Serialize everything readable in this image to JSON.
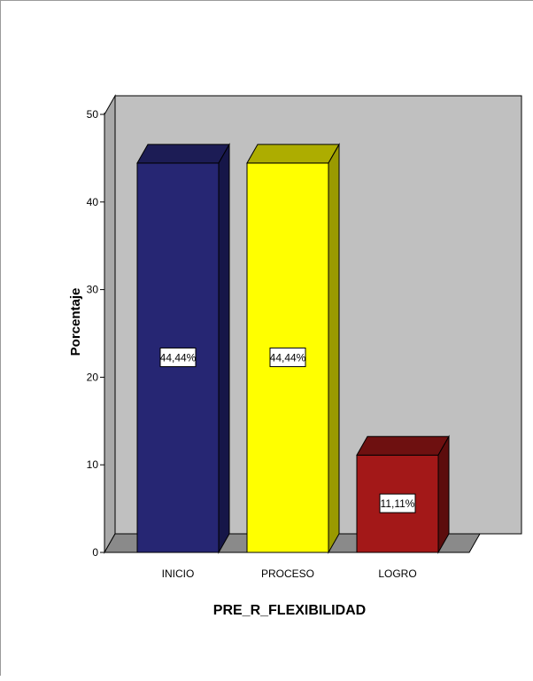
{
  "chart_data": {
    "type": "bar",
    "categories": [
      "INICIO",
      "PROCESO",
      "LOGRO"
    ],
    "values": [
      44.44,
      44.44,
      11.11
    ],
    "value_labels": [
      "44,44%",
      "44,44%",
      "11,11%"
    ],
    "colors": [
      "#262673",
      "#ffff00",
      "#a31818"
    ],
    "top_colors": [
      "#1c1c55",
      "#adad00",
      "#6e1010"
    ],
    "side_colors": [
      "#161648",
      "#9a9a00",
      "#5c0d0d"
    ],
    "xlabel": "PRE_R_FLEXIBILIDAD",
    "ylabel": "Porcentaje",
    "ylim": [
      0,
      50
    ],
    "yticks": [
      0,
      10,
      20,
      30,
      40,
      50
    ],
    "style": "3d",
    "background": "#c0c0c0",
    "grid": false
  }
}
